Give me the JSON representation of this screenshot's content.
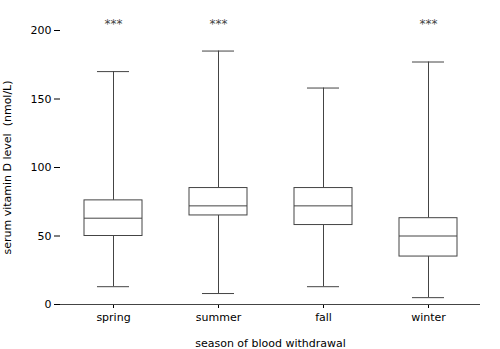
{
  "chart_data": {
    "type": "box",
    "categories": [
      "spring",
      "summer",
      "fall",
      "winter"
    ],
    "boxes": [
      {
        "q1": 50,
        "median": 63,
        "q3": 76,
        "whisker_low": 13,
        "whisker_high": 170
      },
      {
        "q1": 65,
        "median": 72,
        "q3": 85,
        "whisker_low": 8,
        "whisker_high": 185
      },
      {
        "q1": 58,
        "median": 72,
        "q3": 85,
        "whisker_low": 13,
        "whisker_high": 158
      },
      {
        "q1": 35,
        "median": 50,
        "q3": 63,
        "whisker_low": 5,
        "whisker_high": 177
      }
    ],
    "annotations": [
      {
        "category": "spring",
        "label": "***"
      },
      {
        "category": "summer",
        "label": "***"
      },
      {
        "category": "winter",
        "label": "***"
      }
    ],
    "ylabel": "serum vitamin D level  (nmol/L)",
    "xlabel": "season of blood withdrawal",
    "ylim": [
      0,
      200
    ],
    "yticks": [
      0,
      50,
      100,
      150,
      200
    ],
    "color": "#444444",
    "grid": false
  }
}
